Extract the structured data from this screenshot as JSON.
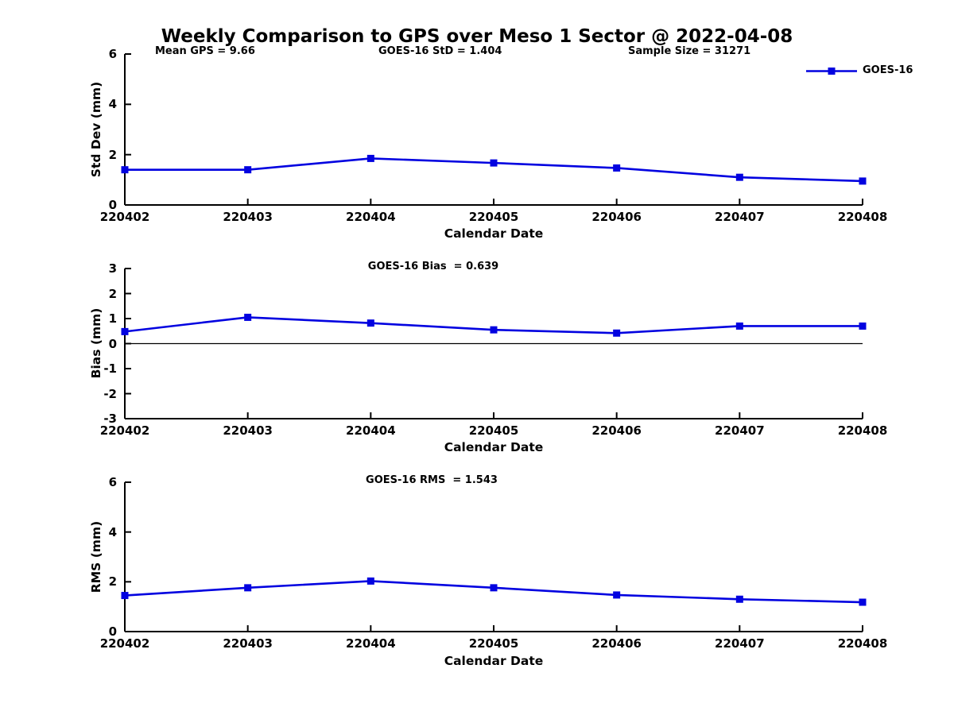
{
  "figure": {
    "title": "Weekly Comparison to GPS over Meso 1 Sector @ 2022-04-08",
    "background_color": "#ffffff",
    "line_color": "#0202e0",
    "axis_color": "#000000",
    "text_color": "#000000"
  },
  "chart_data": [
    {
      "type": "line",
      "annotations": [
        "Mean GPS = 9.66",
        "GOES-16 StD = 1.404",
        "Sample Size = 31271"
      ],
      "xlabel": "Calendar Date",
      "ylabel": "Std Dev (mm)",
      "categories": [
        "220402",
        "220403",
        "220404",
        "220405",
        "220406",
        "220407",
        "220408"
      ],
      "yticks": [
        0,
        2,
        4,
        6
      ],
      "ylim": [
        0,
        6
      ],
      "grid": false,
      "zero_line": false,
      "legend_position": "top-right",
      "series": [
        {
          "name": "GOES-16",
          "marker": "square",
          "values": [
            1.4,
            1.4,
            1.85,
            1.67,
            1.47,
            1.1,
            0.95
          ]
        }
      ]
    },
    {
      "type": "line",
      "annotations": [
        "GOES-16 Bias  = 0.639"
      ],
      "xlabel": "Calendar Date",
      "ylabel": "Bias (mm)",
      "categories": [
        "220402",
        "220403",
        "220404",
        "220405",
        "220406",
        "220407",
        "220408"
      ],
      "yticks": [
        -3,
        -2,
        -1,
        0,
        1,
        2,
        3
      ],
      "ylim": [
        -3,
        3
      ],
      "grid": false,
      "zero_line": true,
      "legend_position": "none",
      "series": [
        {
          "name": "GOES-16",
          "marker": "square",
          "values": [
            0.48,
            1.05,
            0.82,
            0.55,
            0.42,
            0.7,
            0.7
          ]
        }
      ]
    },
    {
      "type": "line",
      "annotations": [
        "GOES-16 RMS  = 1.543"
      ],
      "xlabel": "Calendar Date",
      "ylabel": "RMS (mm)",
      "categories": [
        "220402",
        "220403",
        "220404",
        "220405",
        "220406",
        "220407",
        "220408"
      ],
      "yticks": [
        0,
        2,
        4,
        6
      ],
      "ylim": [
        0,
        6
      ],
      "grid": false,
      "zero_line": false,
      "legend_position": "none",
      "series": [
        {
          "name": "GOES-16",
          "marker": "square",
          "values": [
            1.45,
            1.76,
            2.03,
            1.76,
            1.47,
            1.3,
            1.18
          ]
        }
      ]
    }
  ]
}
